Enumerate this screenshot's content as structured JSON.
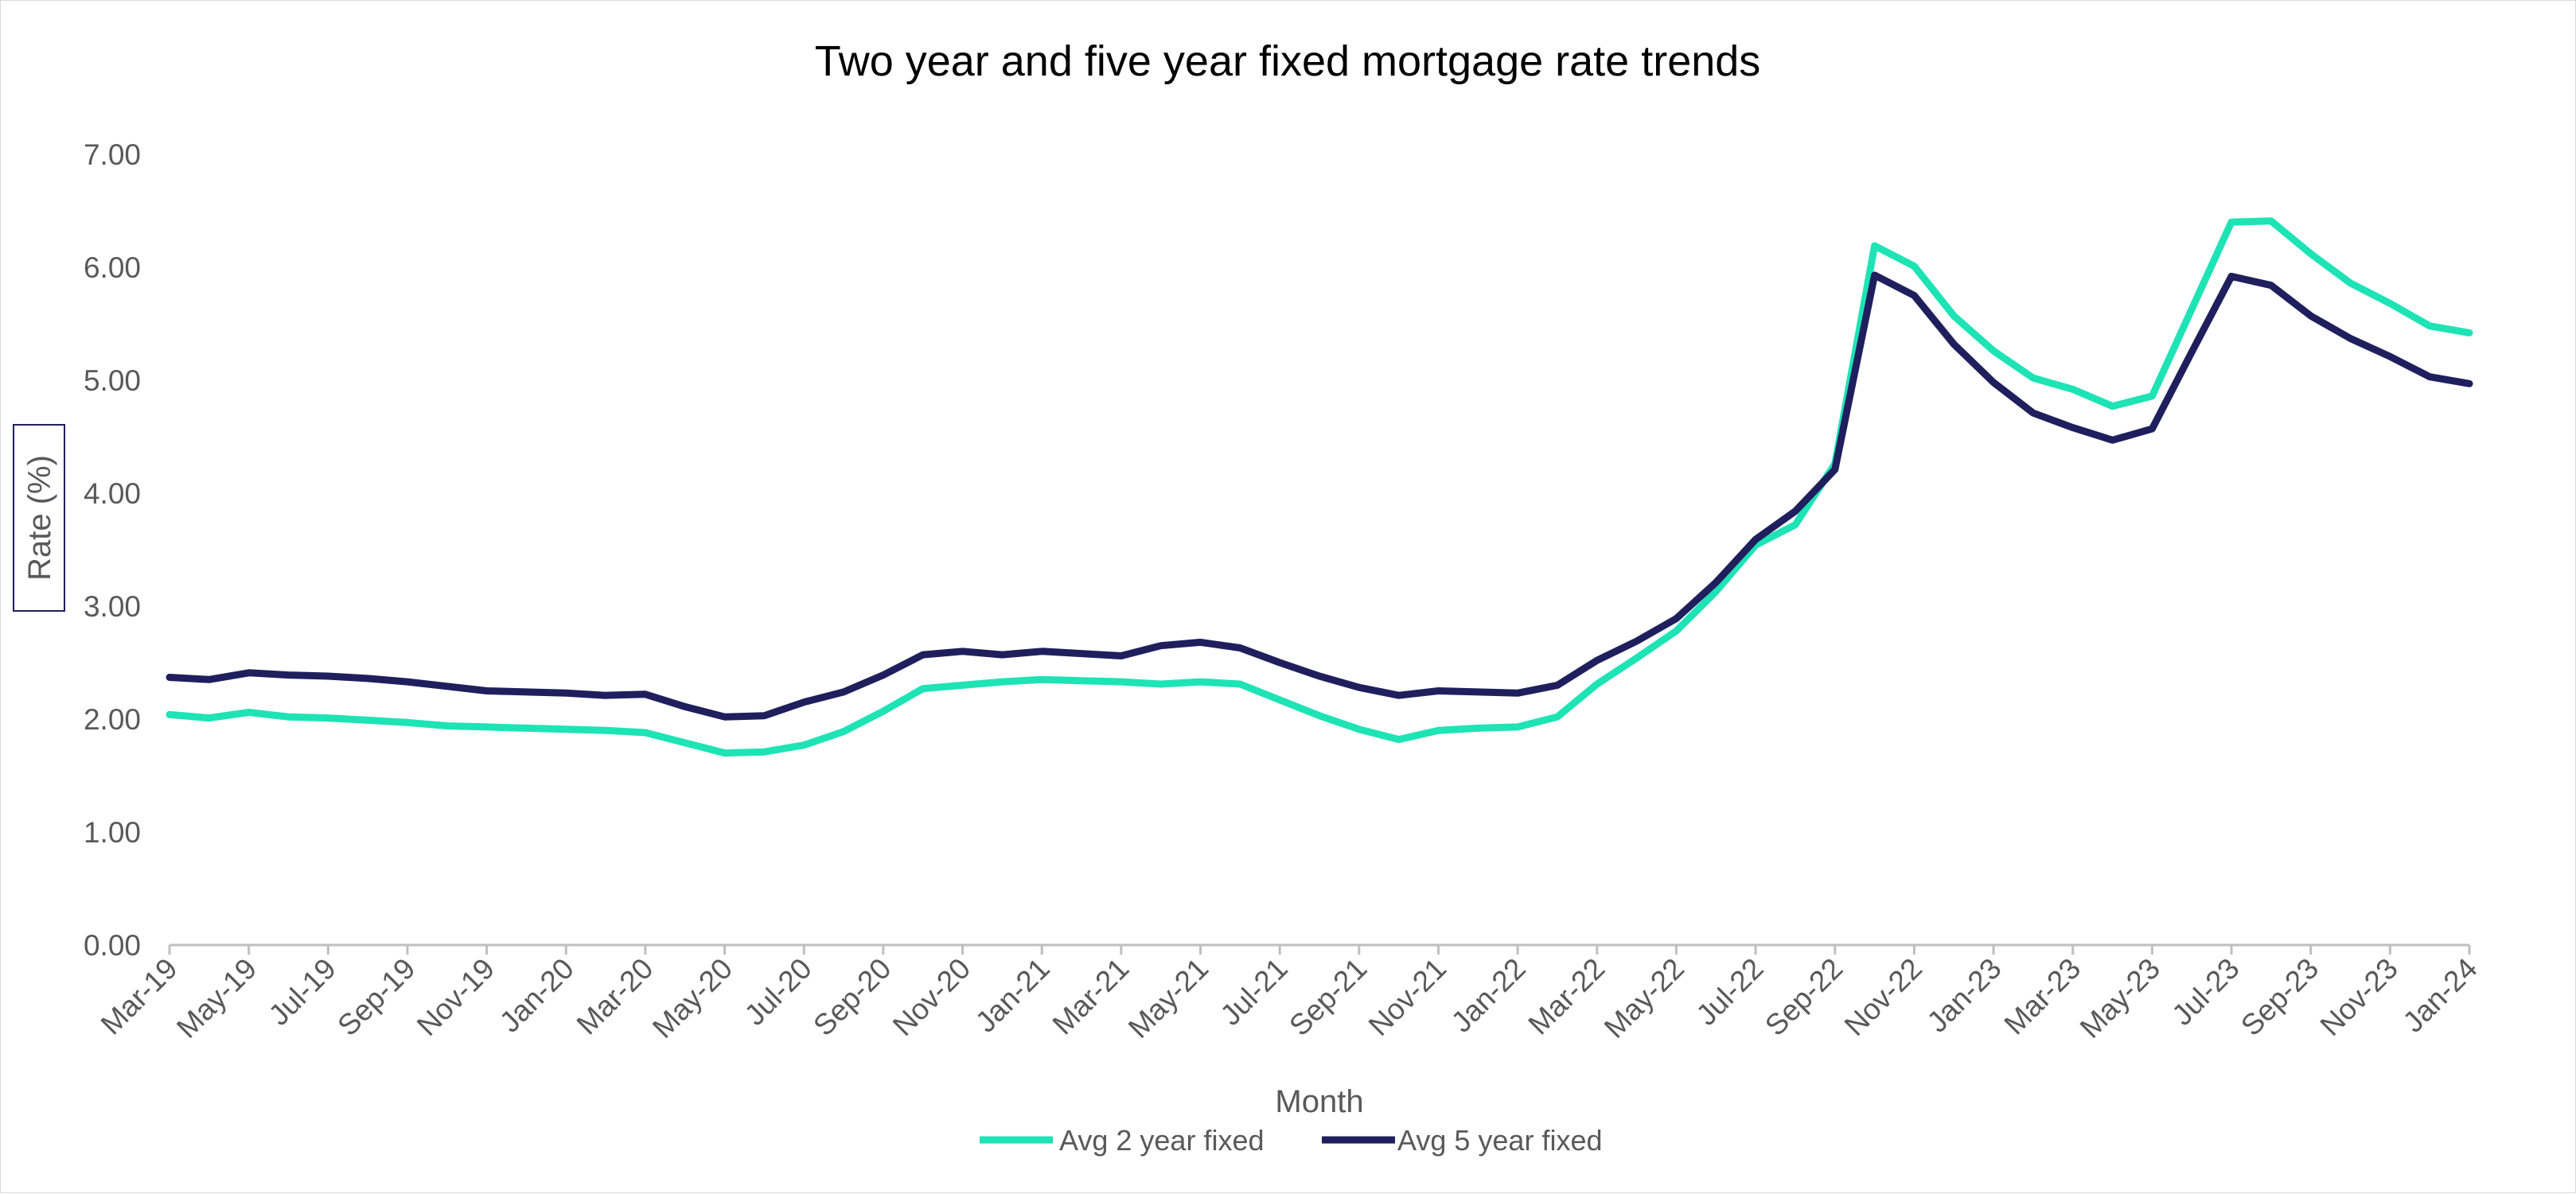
{
  "chart_data": {
    "type": "line",
    "title": "Two year and five year fixed mortgage rate trends",
    "xlabel": "Month",
    "ylabel": "Rate (%)",
    "ylim": [
      0,
      7
    ],
    "y_ticks": [
      "0.00",
      "1.00",
      "2.00",
      "3.00",
      "4.00",
      "5.00",
      "6.00",
      "7.00"
    ],
    "grid": false,
    "legend_position": "bottom-center",
    "x": [
      "Mar-19",
      "Apr-19",
      "May-19",
      "Jun-19",
      "Jul-19",
      "Aug-19",
      "Sep-19",
      "Oct-19",
      "Nov-19",
      "Dec-19",
      "Jan-20",
      "Feb-20",
      "Mar-20",
      "Apr-20",
      "May-20",
      "Jun-20",
      "Jul-20",
      "Aug-20",
      "Sep-20",
      "Oct-20",
      "Nov-20",
      "Dec-20",
      "Jan-21",
      "Feb-21",
      "Mar-21",
      "Apr-21",
      "May-21",
      "Jun-21",
      "Jul-21",
      "Aug-21",
      "Sep-21",
      "Oct-21",
      "Nov-21",
      "Dec-21",
      "Jan-22",
      "Feb-22",
      "Mar-22",
      "Apr-22",
      "May-22",
      "Jun-22",
      "Jul-22",
      "Aug-22",
      "Sep-22",
      "Oct-22",
      "Nov-22",
      "Dec-22",
      "Jan-23",
      "Feb-23",
      "Mar-23",
      "Apr-23",
      "May-23",
      "Jun-23",
      "Jul-23",
      "Aug-23",
      "Sep-23",
      "Oct-23",
      "Nov-23",
      "Dec-23",
      "Jan-24"
    ],
    "tick_labels": [
      "Mar-19",
      "May-19",
      "Jul-19",
      "Sep-19",
      "Nov-19",
      "Jan-20",
      "Mar-20",
      "May-20",
      "Jul-20",
      "Sep-20",
      "Nov-20",
      "Jan-21",
      "Mar-21",
      "May-21",
      "Jul-21",
      "Sep-21",
      "Nov-21",
      "Jan-22",
      "Mar-22",
      "May-22",
      "Jul-22",
      "Sep-22",
      "Nov-22",
      "Jan-23",
      "Mar-23",
      "May-23",
      "Jul-23",
      "Sep-23",
      "Nov-23",
      "Jan-24"
    ],
    "series": [
      {
        "name": "Avg 2 year fixed",
        "color": "#1ee3b5",
        "values": [
          2.04,
          2.01,
          2.06,
          2.02,
          2.01,
          1.99,
          1.97,
          1.94,
          1.93,
          1.92,
          1.91,
          1.9,
          1.88,
          1.79,
          1.7,
          1.71,
          1.77,
          1.89,
          2.07,
          2.27,
          2.3,
          2.33,
          2.35,
          2.34,
          2.33,
          2.31,
          2.33,
          2.31,
          2.17,
          2.03,
          1.91,
          1.82,
          1.9,
          1.92,
          1.93,
          2.02,
          2.31,
          2.54,
          2.78,
          3.13,
          3.54,
          3.72,
          4.26,
          6.19,
          6.01,
          5.57,
          5.26,
          5.02,
          4.92,
          4.77,
          4.86,
          5.63,
          6.4,
          6.41,
          6.12,
          5.86,
          5.68,
          5.48,
          5.42
        ]
      },
      {
        "name": "Avg 5 year fixed",
        "color": "#1f1f5e",
        "values": [
          2.37,
          2.35,
          2.41,
          2.39,
          2.38,
          2.36,
          2.33,
          2.29,
          2.25,
          2.24,
          2.23,
          2.21,
          2.22,
          2.11,
          2.02,
          2.03,
          2.15,
          2.24,
          2.39,
          2.57,
          2.6,
          2.57,
          2.6,
          2.58,
          2.56,
          2.65,
          2.68,
          2.63,
          2.5,
          2.38,
          2.28,
          2.21,
          2.25,
          2.24,
          2.23,
          2.3,
          2.52,
          2.69,
          2.89,
          3.21,
          3.59,
          3.84,
          4.21,
          5.93,
          5.75,
          5.32,
          4.98,
          4.71,
          4.58,
          4.47,
          4.57,
          5.25,
          5.92,
          5.84,
          5.57,
          5.37,
          5.21,
          5.03,
          4.97
        ]
      }
    ]
  }
}
